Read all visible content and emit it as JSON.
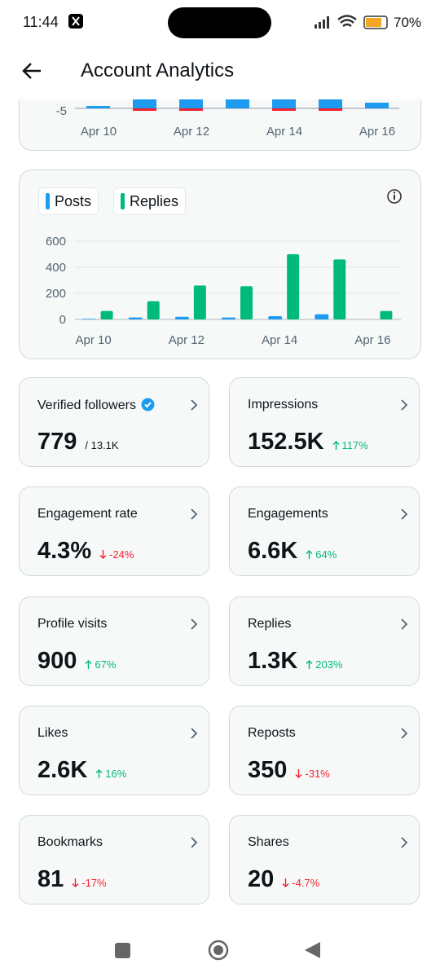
{
  "status_bar": {
    "time": "11:44",
    "battery": "70%"
  },
  "header": {
    "title": "Account Analytics"
  },
  "top_chart": {
    "ytick": "-5",
    "x_labels": [
      "Apr 10",
      "Apr 12",
      "Apr 14",
      "Apr 16"
    ]
  },
  "chart_data": {
    "type": "bar",
    "categories": [
      "Apr 10",
      null,
      "Apr 12",
      null,
      "Apr 14",
      null,
      "Apr 16"
    ],
    "series": [
      {
        "name": "Posts",
        "color": "#1d9bf0",
        "values": [
          5,
          15,
          20,
          15,
          25,
          40,
          0
        ]
      },
      {
        "name": "Replies",
        "color": "#00ba7c",
        "values": [
          65,
          140,
          260,
          255,
          500,
          460,
          65
        ]
      }
    ],
    "ylim": [
      0,
      600
    ],
    "yticks": [
      0,
      200,
      400,
      600
    ],
    "grid": true
  },
  "cards": [
    {
      "label": "Verified followers",
      "value": "779",
      "sub": "/ 13.1K",
      "verified": true
    },
    {
      "label": "Impressions",
      "value": "152.5K",
      "change": "117%",
      "trend": "up"
    },
    {
      "label": "Engagement rate",
      "value": "4.3%",
      "change": "-24%",
      "trend": "down"
    },
    {
      "label": "Engagements",
      "value": "6.6K",
      "change": "64%",
      "trend": "up"
    },
    {
      "label": "Profile visits",
      "value": "900",
      "change": "67%",
      "trend": "up"
    },
    {
      "label": "Replies",
      "value": "1.3K",
      "change": "203%",
      "trend": "up"
    },
    {
      "label": "Likes",
      "value": "2.6K",
      "change": "16%",
      "trend": "up"
    },
    {
      "label": "Reposts",
      "value": "350",
      "change": "-31%",
      "trend": "down"
    },
    {
      "label": "Bookmarks",
      "value": "81",
      "change": "-17%",
      "trend": "down"
    },
    {
      "label": "Shares",
      "value": "20",
      "change": "-4.7%",
      "trend": "down"
    }
  ]
}
